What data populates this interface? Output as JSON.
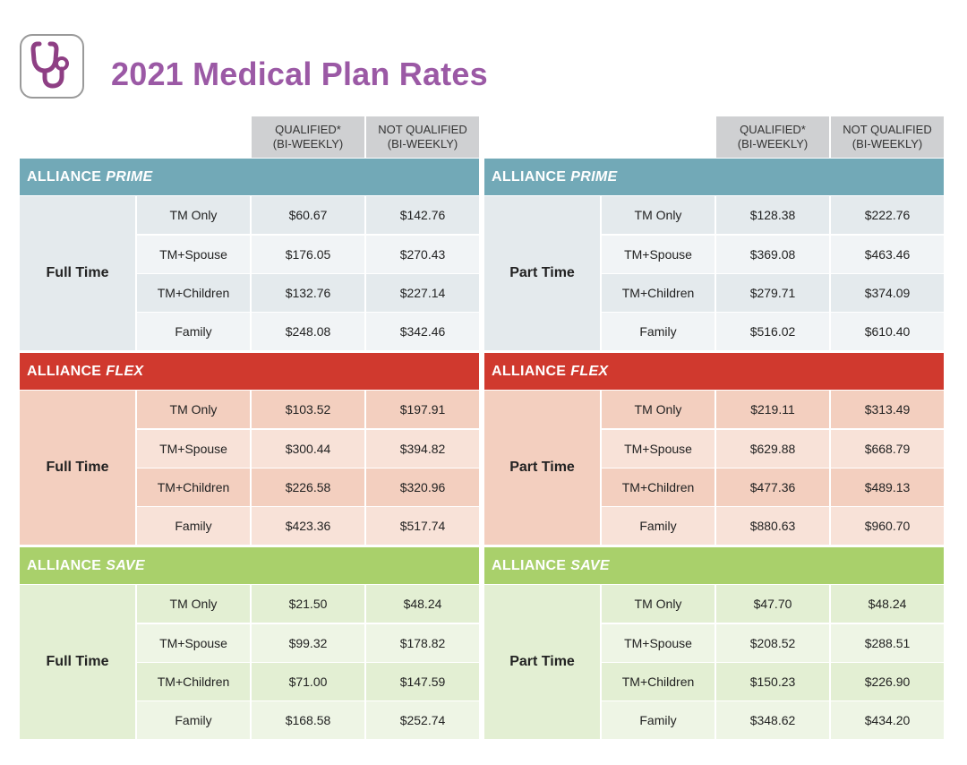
{
  "header": {
    "title": "2021 Medical Plan Rates",
    "logo_icon": "stethoscope-icon",
    "logo_color": "#8e3f84"
  },
  "column_headers": {
    "qualified_line1": "QUALIFIED*",
    "qualified_line2": "(BI-WEEKLY)",
    "not_qualified_line1": "NOT QUALIFIED",
    "not_qualified_line2": "(BI-WEEKLY)"
  },
  "colors": {
    "title": "#9b59a5",
    "prime_band": "#72a9b7",
    "prime_dark": "#e4eaed",
    "prime_light": "#f1f4f6",
    "flex_band": "#d0392e",
    "flex_dark": "#f3cfbf",
    "flex_light": "#f8e2d8",
    "save_band": "#a9d06b",
    "save_dark": "#e3efd3",
    "save_light": "#eef5e5"
  },
  "panels": [
    {
      "employment": "Full Time",
      "sections": [
        {
          "plan_prefix": "ALLIANCE",
          "plan_name": "PRIME",
          "rows": [
            {
              "tier": "TM Only",
              "qualified": "$60.67",
              "not_qualified": "$142.76"
            },
            {
              "tier": "TM+Spouse",
              "qualified": "$176.05",
              "not_qualified": "$270.43"
            },
            {
              "tier": "TM+Children",
              "qualified": "$132.76",
              "not_qualified": "$227.14"
            },
            {
              "tier": "Family",
              "qualified": "$248.08",
              "not_qualified": "$342.46"
            }
          ]
        },
        {
          "plan_prefix": "ALLIANCE",
          "plan_name": "FLEX",
          "rows": [
            {
              "tier": "TM Only",
              "qualified": "$103.52",
              "not_qualified": "$197.91"
            },
            {
              "tier": "TM+Spouse",
              "qualified": "$300.44",
              "not_qualified": "$394.82"
            },
            {
              "tier": "TM+Children",
              "qualified": "$226.58",
              "not_qualified": "$320.96"
            },
            {
              "tier": "Family",
              "qualified": "$423.36",
              "not_qualified": "$517.74"
            }
          ]
        },
        {
          "plan_prefix": "ALLIANCE",
          "plan_name": "SAVE",
          "rows": [
            {
              "tier": "TM Only",
              "qualified": "$21.50",
              "not_qualified": "$48.24"
            },
            {
              "tier": "TM+Spouse",
              "qualified": "$99.32",
              "not_qualified": "$178.82"
            },
            {
              "tier": "TM+Children",
              "qualified": "$71.00",
              "not_qualified": "$147.59"
            },
            {
              "tier": "Family",
              "qualified": "$168.58",
              "not_qualified": "$252.74"
            }
          ]
        }
      ]
    },
    {
      "employment": "Part Time",
      "sections": [
        {
          "plan_prefix": "ALLIANCE",
          "plan_name": "PRIME",
          "rows": [
            {
              "tier": "TM Only",
              "qualified": "$128.38",
              "not_qualified": "$222.76"
            },
            {
              "tier": "TM+Spouse",
              "qualified": "$369.08",
              "not_qualified": "$463.46"
            },
            {
              "tier": "TM+Children",
              "qualified": "$279.71",
              "not_qualified": "$374.09"
            },
            {
              "tier": "Family",
              "qualified": "$516.02",
              "not_qualified": "$610.40"
            }
          ]
        },
        {
          "plan_prefix": "ALLIANCE",
          "plan_name": "FLEX",
          "rows": [
            {
              "tier": "TM Only",
              "qualified": "$219.11",
              "not_qualified": "$313.49"
            },
            {
              "tier": "TM+Spouse",
              "qualified": "$629.88",
              "not_qualified": "$668.79"
            },
            {
              "tier": "TM+Children",
              "qualified": "$477.36",
              "not_qualified": "$489.13"
            },
            {
              "tier": "Family",
              "qualified": "$880.63",
              "not_qualified": "$960.70"
            }
          ]
        },
        {
          "plan_prefix": "ALLIANCE",
          "plan_name": "SAVE",
          "rows": [
            {
              "tier": "TM Only",
              "qualified": "$47.70",
              "not_qualified": "$48.24"
            },
            {
              "tier": "TM+Spouse",
              "qualified": "$208.52",
              "not_qualified": "$288.51"
            },
            {
              "tier": "TM+Children",
              "qualified": "$150.23",
              "not_qualified": "$226.90"
            },
            {
              "tier": "Family",
              "qualified": "$348.62",
              "not_qualified": "$434.20"
            }
          ]
        }
      ]
    }
  ]
}
